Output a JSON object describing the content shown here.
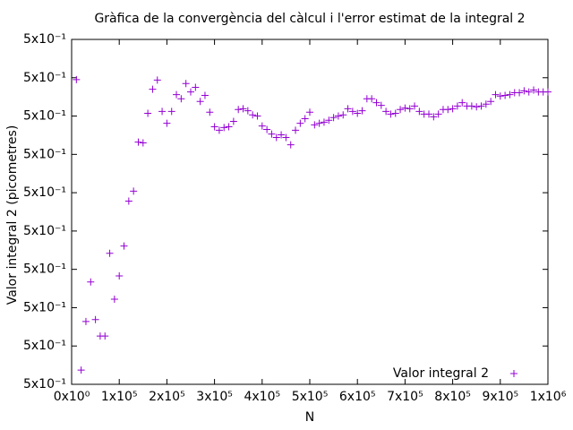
{
  "chart_data": {
    "type": "scatter",
    "title": "Gràfica de la convergència del càlcul i l'error estimat de la integral 2",
    "x_label": "N",
    "y_label": "Valor integral 2 (picometres)",
    "xlim": [
      0,
      1000000
    ],
    "xticks": [
      {
        "value": 0,
        "label": "0x10⁰"
      },
      {
        "value": 100000,
        "label": "1x10⁵"
      },
      {
        "value": 200000,
        "label": "2x10⁵"
      },
      {
        "value": 300000,
        "label": "3x10⁵"
      },
      {
        "value": 400000,
        "label": "4x10⁵"
      },
      {
        "value": 500000,
        "label": "5x10⁵"
      },
      {
        "value": 600000,
        "label": "6x10⁵"
      },
      {
        "value": 700000,
        "label": "7x10⁵"
      },
      {
        "value": 800000,
        "label": "8x10⁵"
      },
      {
        "value": 900000,
        "label": "9x10⁵"
      },
      {
        "value": 1000000,
        "label": "1x10⁶"
      }
    ],
    "ylim": [
      0.49995,
      0.50004
    ],
    "yticks": [
      {
        "value": 0.49995,
        "label": "5x10⁻¹"
      },
      {
        "value": 0.49996,
        "label": "5x10⁻¹"
      },
      {
        "value": 0.49997,
        "label": "5x10⁻¹"
      },
      {
        "value": 0.49998,
        "label": "5x10⁻¹"
      },
      {
        "value": 0.49999,
        "label": "5x10⁻¹"
      },
      {
        "value": 0.5,
        "label": "5x10⁻¹"
      },
      {
        "value": 0.50001,
        "label": "5x10⁻¹"
      },
      {
        "value": 0.50002,
        "label": "5x10⁻¹"
      },
      {
        "value": 0.50003,
        "label": "5x10⁻¹"
      },
      {
        "value": 0.50004,
        "label": "5x10⁻¹"
      }
    ],
    "legend": "bottom-right",
    "x": [
      10000,
      20000,
      30000,
      40000,
      50000,
      60000,
      70000,
      80000,
      90000,
      100000,
      110000,
      120000,
      130000,
      140000,
      150000,
      160000,
      170000,
      180000,
      190000,
      200000,
      210000,
      220000,
      230000,
      240000,
      250000,
      260000,
      270000,
      280000,
      290000,
      300000,
      310000,
      320000,
      330000,
      340000,
      350000,
      360000,
      370000,
      380000,
      390000,
      400000,
      410000,
      420000,
      430000,
      440000,
      450000,
      460000,
      470000,
      480000,
      490000,
      500000,
      510000,
      520000,
      530000,
      540000,
      550000,
      560000,
      570000,
      580000,
      590000,
      600000,
      610000,
      620000,
      630000,
      640000,
      650000,
      660000,
      670000,
      680000,
      690000,
      700000,
      710000,
      720000,
      730000,
      740000,
      750000,
      760000,
      770000,
      780000,
      790000,
      800000,
      810000,
      820000,
      830000,
      840000,
      850000,
      860000,
      870000,
      880000,
      890000,
      900000,
      910000,
      920000,
      930000,
      940000,
      950000,
      960000,
      970000,
      980000,
      990000,
      1000000
    ],
    "series": [
      {
        "name": "Valor integral 2",
        "color": "#9400d3",
        "values": [
          0.5000295,
          0.4999537,
          0.4999664,
          0.4999767,
          0.4999669,
          0.4999626,
          0.4999626,
          0.4999842,
          0.4999722,
          0.4999783,
          0.4999861,
          0.4999978,
          0.5000004,
          0.5000132,
          0.500013,
          0.5000207,
          0.500027,
          0.5000294,
          0.5000212,
          0.5000181,
          0.5000212,
          0.5000256,
          0.5000245,
          0.5000285,
          0.5000263,
          0.5000275,
          0.5000238,
          0.5000254,
          0.500021,
          0.5000172,
          0.5000163,
          0.500017,
          0.5000172,
          0.5000186,
          0.5000217,
          0.5000219,
          0.5000214,
          0.5000203,
          0.50002,
          0.5000174,
          0.5000165,
          0.5000153,
          0.5000144,
          0.5000151,
          0.5000144,
          0.5000125,
          0.5000163,
          0.5000181,
          0.5000193,
          0.500021,
          0.5000177,
          0.5000181,
          0.5000184,
          0.5000189,
          0.5000196,
          0.50002,
          0.5000203,
          0.5000219,
          0.5000212,
          0.5000207,
          0.5000214,
          0.5000245,
          0.5000245,
          0.5000235,
          0.5000228,
          0.5000212,
          0.5000205,
          0.5000207,
          0.5000217,
          0.5000221,
          0.5000219,
          0.5000226,
          0.5000212,
          0.5000205,
          0.5000205,
          0.5000198,
          0.5000205,
          0.5000217,
          0.5000217,
          0.5000219,
          0.5000226,
          0.5000235,
          0.5000226,
          0.5000226,
          0.5000224,
          0.5000226,
          0.5000231,
          0.5000238,
          0.5000256,
          0.5000252,
          0.5000254,
          0.5000256,
          0.5000261,
          0.5000261,
          0.5000266,
          0.5000263,
          0.5000268,
          0.5000263,
          0.5000263,
          0.5000263
        ]
      }
    ]
  }
}
